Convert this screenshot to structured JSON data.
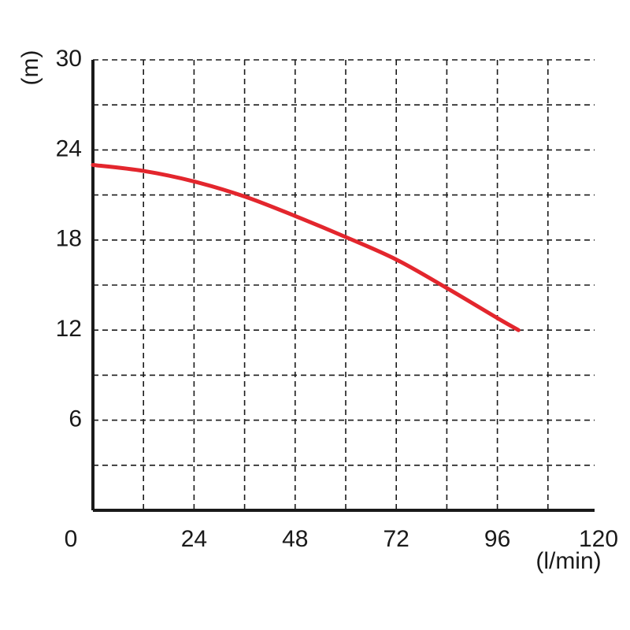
{
  "chart_data": {
    "type": "line",
    "title": "",
    "xlabel": "(l/min)",
    "ylabel": "(m)",
    "xlim": [
      0,
      120
    ],
    "ylim": [
      0,
      30
    ],
    "x_ticks": [
      "0",
      "24",
      "48",
      "72",
      "96",
      "120"
    ],
    "y_ticks": [
      "6",
      "12",
      "18",
      "24",
      "30"
    ],
    "grid": true,
    "grid_style": "dashed",
    "grid_x_step": 12,
    "grid_y_step": 3,
    "series": [
      {
        "color": "#e3262d",
        "x": [
          0,
          12,
          24,
          36,
          48,
          60,
          72,
          84,
          96,
          101
        ],
        "y": [
          23.0,
          22.6,
          21.9,
          20.9,
          19.6,
          18.2,
          16.7,
          14.8,
          12.8,
          12.0
        ]
      }
    ]
  }
}
